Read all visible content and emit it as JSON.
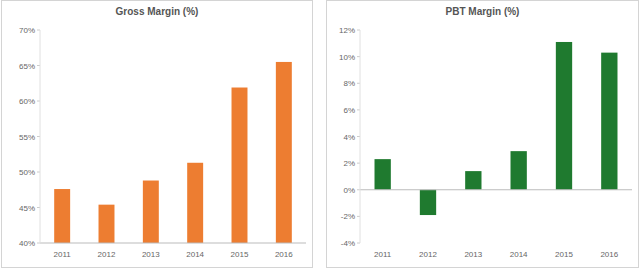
{
  "chart_data": [
    {
      "type": "bar",
      "title": "Gross Margin (%)",
      "categories": [
        "2011",
        "2012",
        "2013",
        "2014",
        "2015",
        "2016"
      ],
      "values": [
        47.6,
        45.4,
        48.8,
        51.3,
        61.9,
        65.5
      ],
      "color": "#ed7d31",
      "ylim": [
        40,
        70
      ],
      "yticks": [
        {
          "value": 40,
          "label": "40%"
        },
        {
          "value": 45,
          "label": "45%"
        },
        {
          "value": 50,
          "label": "50%"
        },
        {
          "value": 55,
          "label": "55%"
        },
        {
          "value": 60,
          "label": "60%"
        },
        {
          "value": 65,
          "label": "65%"
        },
        {
          "value": 70,
          "label": "70%"
        }
      ],
      "grid": false
    },
    {
      "type": "bar",
      "title": "PBT Margin (%)",
      "categories": [
        "2011",
        "2012",
        "2013",
        "2014",
        "2015",
        "2016"
      ],
      "values": [
        2.3,
        -1.9,
        1.4,
        2.9,
        11.1,
        10.3
      ],
      "color": "#1f7a2f",
      "ylim": [
        -4,
        12
      ],
      "yticks": [
        {
          "value": -4,
          "label": "-4%"
        },
        {
          "value": -2,
          "label": "-2%"
        },
        {
          "value": 0,
          "label": "0%"
        },
        {
          "value": 2,
          "label": "2%"
        },
        {
          "value": 4,
          "label": "4%"
        },
        {
          "value": 6,
          "label": "6%"
        },
        {
          "value": 8,
          "label": "8%"
        },
        {
          "value": 10,
          "label": "10%"
        },
        {
          "value": 12,
          "label": "12%"
        }
      ],
      "grid": false
    }
  ]
}
